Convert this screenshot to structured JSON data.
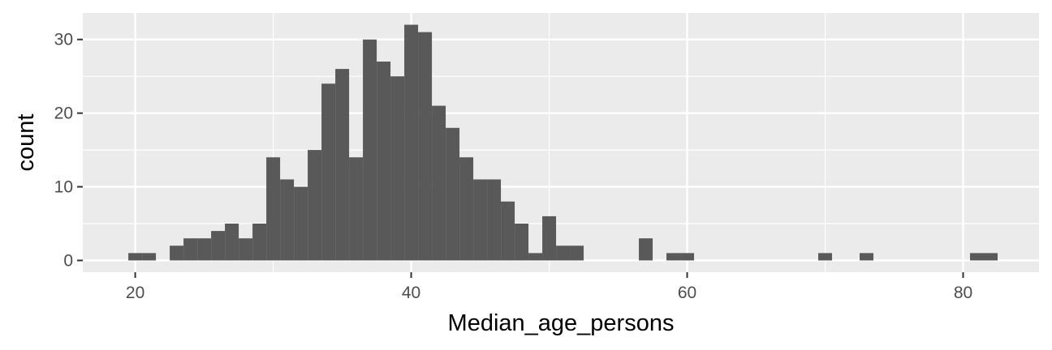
{
  "chart_data": {
    "type": "bar",
    "subtype": "histogram",
    "xlabel": "Median_age_persons",
    "ylabel": "count",
    "xlim": [
      16.2,
      85.5
    ],
    "ylim": [
      -1.6,
      33.6
    ],
    "x_ticks": [
      20,
      40,
      60,
      80
    ],
    "y_ticks": [
      0,
      10,
      20,
      30
    ],
    "x_minor": [
      30,
      50,
      70
    ],
    "y_minor": [
      5,
      15,
      25
    ],
    "bin_width": 1,
    "bins": [
      {
        "x": 20,
        "count": 1
      },
      {
        "x": 21,
        "count": 1
      },
      {
        "x": 23,
        "count": 2
      },
      {
        "x": 24,
        "count": 3
      },
      {
        "x": 25,
        "count": 3
      },
      {
        "x": 26,
        "count": 4
      },
      {
        "x": 27,
        "count": 5
      },
      {
        "x": 28,
        "count": 3
      },
      {
        "x": 29,
        "count": 5
      },
      {
        "x": 30,
        "count": 14
      },
      {
        "x": 31,
        "count": 11
      },
      {
        "x": 32,
        "count": 10
      },
      {
        "x": 33,
        "count": 15
      },
      {
        "x": 34,
        "count": 24
      },
      {
        "x": 35,
        "count": 26
      },
      {
        "x": 36,
        "count": 14
      },
      {
        "x": 37,
        "count": 30
      },
      {
        "x": 38,
        "count": 27
      },
      {
        "x": 39,
        "count": 25
      },
      {
        "x": 40,
        "count": 32
      },
      {
        "x": 41,
        "count": 31
      },
      {
        "x": 42,
        "count": 21
      },
      {
        "x": 43,
        "count": 18
      },
      {
        "x": 44,
        "count": 14
      },
      {
        "x": 45,
        "count": 11
      },
      {
        "x": 46,
        "count": 11
      },
      {
        "x": 47,
        "count": 8
      },
      {
        "x": 48,
        "count": 5
      },
      {
        "x": 49,
        "count": 1
      },
      {
        "x": 50,
        "count": 6
      },
      {
        "x": 51,
        "count": 2
      },
      {
        "x": 52,
        "count": 2
      },
      {
        "x": 57,
        "count": 3
      },
      {
        "x": 59,
        "count": 1
      },
      {
        "x": 60,
        "count": 1
      },
      {
        "x": 70,
        "count": 1
      },
      {
        "x": 73,
        "count": 1
      },
      {
        "x": 81,
        "count": 1
      },
      {
        "x": 82,
        "count": 1
      }
    ],
    "colors": {
      "panel": "#ebebeb",
      "grid": "#ffffff",
      "bar": "#595959",
      "tick": "#333333"
    },
    "grid": true
  }
}
